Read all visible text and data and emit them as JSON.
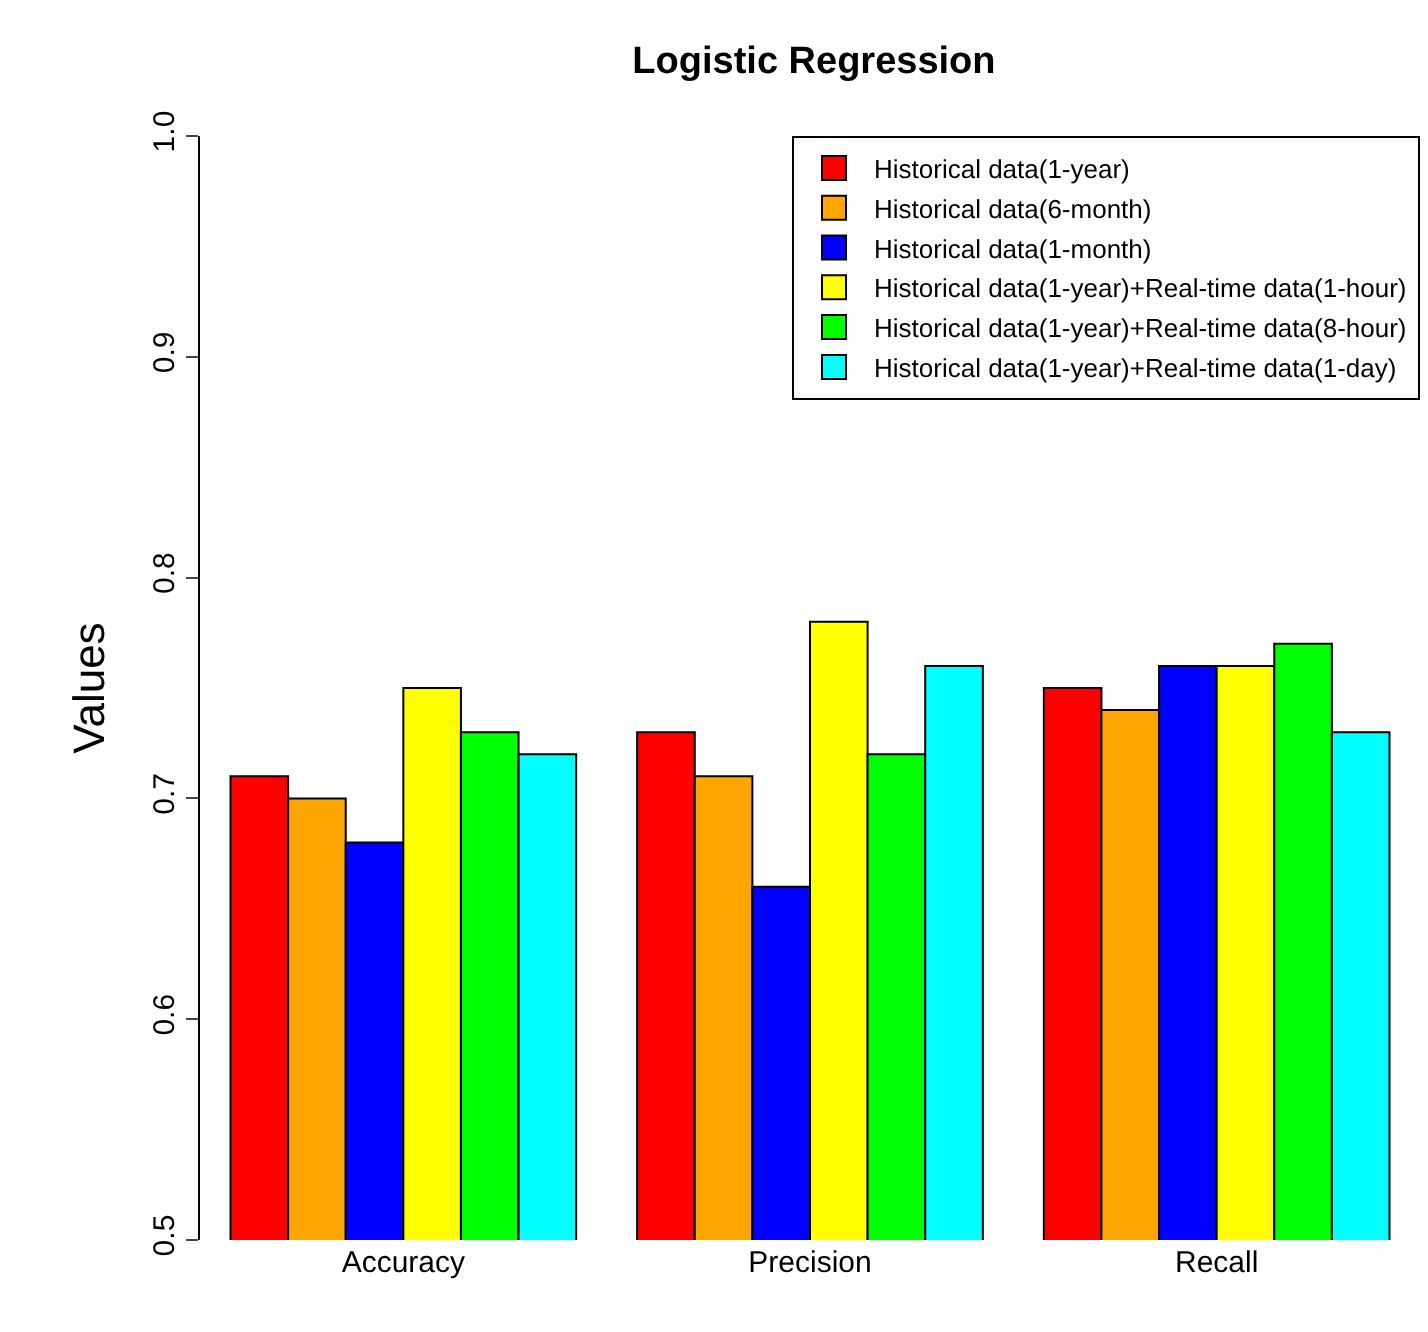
{
  "chart_data": {
    "type": "bar",
    "title": "Logistic Regression",
    "ylabel": "Values",
    "categories": [
      "Accuracy",
      "Precision",
      "Recall"
    ],
    "series": [
      {
        "name": "Historical data(1-year)",
        "color": "#ff0000",
        "values": [
          0.71,
          0.73,
          0.75
        ]
      },
      {
        "name": "Historical data(6-month)",
        "color": "#ffa500",
        "values": [
          0.7,
          0.71,
          0.74
        ]
      },
      {
        "name": "Historical data(1-month)",
        "color": "#0000ff",
        "values": [
          0.68,
          0.66,
          0.76
        ]
      },
      {
        "name": "Historical data(1-year)+Real-time data(1-hour)",
        "color": "#ffff00",
        "values": [
          0.75,
          0.78,
          0.76
        ]
      },
      {
        "name": "Historical data(1-year)+Real-time data(8-hour)",
        "color": "#00ff00",
        "values": [
          0.73,
          0.72,
          0.77
        ]
      },
      {
        "name": "Historical data(1-year)+Real-time data(1-day)",
        "color": "#00ffff",
        "values": [
          0.72,
          0.76,
          0.73
        ]
      }
    ],
    "ylim": [
      0.5,
      1.0
    ],
    "yticks": [
      0.5,
      0.6,
      0.7,
      0.8,
      0.9,
      {
        "value": 1.0,
        "label": "1.0"
      }
    ],
    "legend": "top right"
  }
}
